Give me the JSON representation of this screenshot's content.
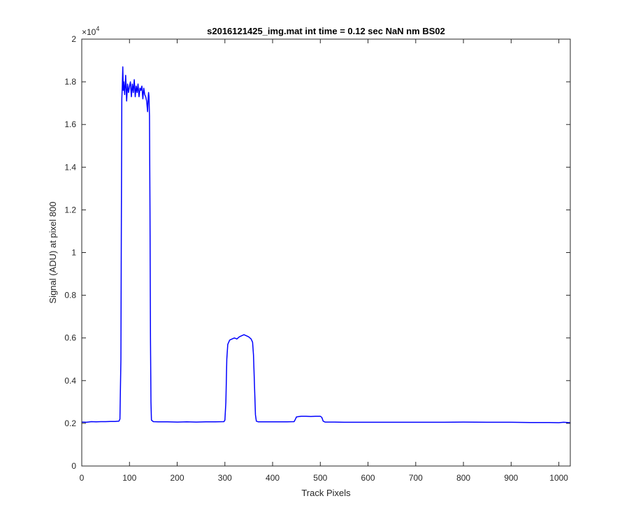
{
  "chart_data": {
    "type": "line",
    "title": "s2016121425_img.mat int time = 0.12 sec  NaN nm BS02",
    "xlabel": "Track Pixels",
    "ylabel": "Signal (ADU) at pixel 800",
    "xlim": [
      0,
      1024
    ],
    "ylim": [
      0,
      20000
    ],
    "xticks": [
      0,
      100,
      200,
      300,
      400,
      500,
      600,
      700,
      800,
      900,
      1000
    ],
    "xtick_labels": [
      "0",
      "100",
      "200",
      "300",
      "400",
      "500",
      "600",
      "700",
      "800",
      "900",
      "1000"
    ],
    "yticks": [
      0,
      2000,
      4000,
      6000,
      8000,
      10000,
      12000,
      14000,
      16000,
      18000,
      20000
    ],
    "ytick_labels": [
      "0",
      "0.2",
      "0.4",
      "0.6",
      "0.8",
      "1",
      "1.2",
      "1.4",
      "1.6",
      "1.8",
      "2"
    ],
    "y_exponent_label": "×10",
    "y_exponent_power": "4",
    "grid": false,
    "series": [
      {
        "color": "#0000ff",
        "points": [
          [
            0,
            2060
          ],
          [
            10,
            2050
          ],
          [
            20,
            2080
          ],
          [
            30,
            2070
          ],
          [
            40,
            2080
          ],
          [
            50,
            2080
          ],
          [
            60,
            2090
          ],
          [
            70,
            2090
          ],
          [
            78,
            2100
          ],
          [
            80,
            2200
          ],
          [
            82,
            5000
          ],
          [
            83,
            12000
          ],
          [
            84,
            17200
          ],
          [
            85,
            17800
          ],
          [
            86,
            18700
          ],
          [
            87,
            17600
          ],
          [
            88,
            18000
          ],
          [
            90,
            17400
          ],
          [
            92,
            18300
          ],
          [
            94,
            17100
          ],
          [
            96,
            17900
          ],
          [
            98,
            17500
          ],
          [
            100,
            17800
          ],
          [
            102,
            18000
          ],
          [
            104,
            17300
          ],
          [
            106,
            17900
          ],
          [
            108,
            17500
          ],
          [
            110,
            18100
          ],
          [
            112,
            17300
          ],
          [
            114,
            17800
          ],
          [
            116,
            17500
          ],
          [
            118,
            17900
          ],
          [
            120,
            17300
          ],
          [
            122,
            17700
          ],
          [
            124,
            17600
          ],
          [
            126,
            17800
          ],
          [
            128,
            17200
          ],
          [
            130,
            17700
          ],
          [
            132,
            17400
          ],
          [
            134,
            17300
          ],
          [
            136,
            17100
          ],
          [
            138,
            16600
          ],
          [
            139,
            17200
          ],
          [
            140,
            17500
          ],
          [
            141,
            17300
          ],
          [
            142,
            16400
          ],
          [
            143,
            12000
          ],
          [
            144,
            6000
          ],
          [
            145,
            3000
          ],
          [
            146,
            2150
          ],
          [
            150,
            2080
          ],
          [
            160,
            2070
          ],
          [
            180,
            2070
          ],
          [
            200,
            2060
          ],
          [
            220,
            2070
          ],
          [
            240,
            2060
          ],
          [
            260,
            2070
          ],
          [
            280,
            2070
          ],
          [
            298,
            2080
          ],
          [
            300,
            2150
          ],
          [
            302,
            3000
          ],
          [
            304,
            5000
          ],
          [
            306,
            5700
          ],
          [
            310,
            5900
          ],
          [
            315,
            5950
          ],
          [
            320,
            6000
          ],
          [
            325,
            5950
          ],
          [
            330,
            6050
          ],
          [
            335,
            6100
          ],
          [
            340,
            6150
          ],
          [
            345,
            6100
          ],
          [
            350,
            6050
          ],
          [
            355,
            5950
          ],
          [
            358,
            5800
          ],
          [
            360,
            5200
          ],
          [
            362,
            3800
          ],
          [
            364,
            2400
          ],
          [
            366,
            2100
          ],
          [
            370,
            2070
          ],
          [
            390,
            2070
          ],
          [
            410,
            2070
          ],
          [
            430,
            2070
          ],
          [
            445,
            2080
          ],
          [
            448,
            2200
          ],
          [
            450,
            2300
          ],
          [
            460,
            2330
          ],
          [
            470,
            2330
          ],
          [
            480,
            2320
          ],
          [
            490,
            2330
          ],
          [
            500,
            2330
          ],
          [
            503,
            2280
          ],
          [
            506,
            2100
          ],
          [
            510,
            2060
          ],
          [
            530,
            2060
          ],
          [
            550,
            2050
          ],
          [
            570,
            2050
          ],
          [
            600,
            2050
          ],
          [
            630,
            2050
          ],
          [
            660,
            2050
          ],
          [
            700,
            2050
          ],
          [
            730,
            2050
          ],
          [
            760,
            2050
          ],
          [
            800,
            2060
          ],
          [
            850,
            2050
          ],
          [
            900,
            2050
          ],
          [
            940,
            2040
          ],
          [
            980,
            2040
          ],
          [
            1000,
            2030
          ],
          [
            1010,
            2050
          ],
          [
            1024,
            2030
          ]
        ]
      }
    ]
  }
}
